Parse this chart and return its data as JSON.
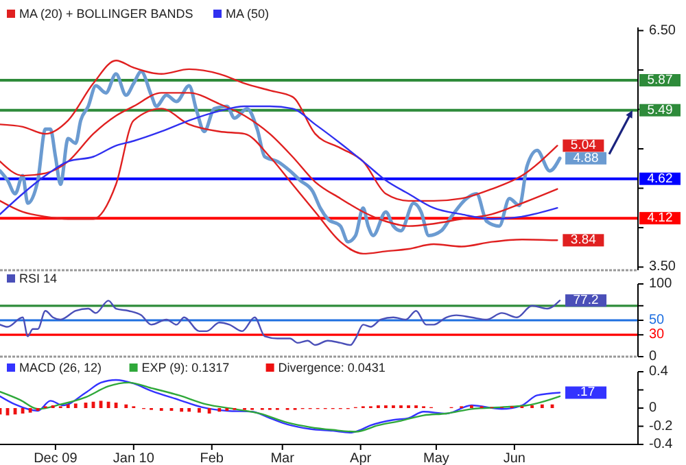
{
  "chart_data": [
    {
      "type": "line",
      "legend": "top left",
      "tick_labels": "y",
      "xlim": [
        "2009-11-09",
        "2010-07-20"
      ],
      "ylim": [
        3.46,
        6.54
      ],
      "yticks": [
        {
          "value": 3.5,
          "label": "3.50"
        },
        {
          "value": 4,
          "label": null
        },
        {
          "value": 4.5,
          "label": null
        },
        {
          "value": 5,
          "label": null
        },
        {
          "value": 5.5,
          "label": null
        },
        {
          "value": 6,
          "label": null
        },
        {
          "value": 6.5,
          "label": "6.50"
        }
      ],
      "ref_lines": [
        {
          "axis": "y",
          "value": 5.87,
          "label": "5.87",
          "color": "#2e8b3a"
        },
        {
          "axis": "y",
          "value": 5.49,
          "label": "5.49",
          "color": "#2e8b3a"
        },
        {
          "axis": "y",
          "value": 4.62,
          "label": "4.62",
          "color": "#0000ff"
        },
        {
          "axis": "y",
          "value": 4.12,
          "label": "4.12",
          "color": "#ff0000"
        }
      ],
      "series": [
        {
          "color": "#6b9bd1",
          "x": [
            "2009-11-09",
            "2009-11-12",
            "2009-11-15",
            "2009-11-18",
            "2009-11-20",
            "2009-11-24",
            "2009-11-27",
            "2009-11-29",
            "2009-12-01",
            "2009-12-03",
            "2009-12-06",
            "2009-12-09",
            "2009-12-11",
            "2009-12-14",
            "2009-12-17",
            "2009-12-21",
            "2009-12-25",
            "2009-12-29",
            "2010-01-01",
            "2010-01-04",
            "2010-01-08",
            "2010-01-10",
            "2010-01-14",
            "2010-01-18",
            "2010-01-23",
            "2010-01-26",
            "2010-01-29",
            "2010-02-02",
            "2010-02-07",
            "2010-02-10",
            "2010-02-15",
            "2010-02-19",
            "2010-02-22",
            "2010-02-27",
            "2010-03-04",
            "2010-03-08",
            "2010-03-13",
            "2010-03-16",
            "2010-03-19",
            "2010-03-24",
            "2010-03-27",
            "2010-03-30",
            "2010-04-02",
            "2010-04-04",
            "2010-04-06",
            "2010-04-11",
            "2010-04-14",
            "2010-04-17",
            "2010-04-22",
            "2010-04-25",
            "2010-04-28",
            "2010-05-03",
            "2010-05-07",
            "2010-05-13",
            "2010-05-17",
            "2010-05-21",
            "2010-05-26",
            "2010-05-30",
            "2010-06-03",
            "2010-06-06",
            "2010-06-10",
            "2010-06-15",
            "2010-06-19"
          ],
          "values": [
            4.72,
            4.6,
            4.43,
            4.66,
            4.31,
            4.6,
            5.25,
            5.25,
            4.9,
            4.55,
            5.13,
            5.07,
            5.36,
            5.54,
            5.8,
            5.71,
            5.95,
            5.68,
            5.83,
            5.98,
            5.68,
            5.54,
            5.68,
            5.6,
            5.8,
            5.48,
            5.22,
            5.51,
            5.54,
            5.39,
            5.51,
            5.25,
            4.9,
            4.84,
            4.72,
            4.6,
            4.46,
            4.25,
            4.11,
            4.02,
            3.82,
            3.9,
            4.25,
            4.02,
            3.9,
            4.2,
            4.02,
            3.96,
            4.31,
            4.2,
            3.9,
            3.96,
            4.14,
            4.37,
            4.43,
            4.08,
            4.02,
            4.37,
            4.28,
            4.78,
            4.98,
            4.72,
            4.88
          ],
          "value_labels": [
            null,
            null,
            null,
            null,
            null,
            null,
            null,
            null,
            null,
            null,
            null,
            null,
            null,
            null,
            null,
            null,
            null,
            null,
            null,
            null,
            null,
            null,
            null,
            null,
            null,
            null,
            null,
            null,
            null,
            null,
            null,
            null,
            null,
            null,
            null,
            null,
            null,
            null,
            null,
            null,
            null,
            null,
            null,
            null,
            null,
            null,
            null,
            null,
            null,
            null,
            null,
            null,
            null,
            null,
            null,
            null,
            null,
            null,
            null,
            null,
            null,
            null,
            "4.88"
          ]
        },
        {
          "name": "MA (20) + BOLLINGER BANDS",
          "color": "#e02020",
          "values": [
            4.84,
            4.66,
            4.69,
            4.84,
            5.19,
            5.42,
            5.54,
            5.71,
            5.71,
            5.57,
            5.42,
            5.19,
            4.9,
            4.58,
            4.37,
            4.2,
            4.08,
            4.02,
            4.05,
            4.11,
            4.17,
            4.31,
            4.49
          ]
        },
        {
          "color": "#e02020",
          "values": [
            5.31,
            5.28,
            5.19,
            5.36,
            5.83,
            6.12,
            6.03,
            5.95,
            6.01,
            5.95,
            5.83,
            5.74,
            5.66,
            5.19,
            5.01,
            4.84,
            4.43,
            4.34,
            4.34,
            4.37,
            4.49,
            4.66,
            5.04
          ],
          "value_labels": [
            null,
            null,
            null,
            null,
            null,
            null,
            null,
            null,
            null,
            null,
            null,
            null,
            null,
            null,
            null,
            null,
            null,
            null,
            null,
            null,
            null,
            null,
            "5.04"
          ]
        },
        {
          "color": "#e02020",
          "values": [
            4.34,
            4.2,
            4.14,
            4.11,
            4.11,
            4.55,
            5.36,
            5.51,
            5.31,
            5.22,
            5.19,
            4.9,
            4.55,
            4.2,
            3.82,
            3.67,
            3.7,
            3.73,
            3.79,
            3.76,
            3.82,
            3.85,
            3.84
          ],
          "value_labels": [
            null,
            null,
            null,
            null,
            null,
            null,
            null,
            null,
            null,
            null,
            null,
            null,
            null,
            null,
            null,
            null,
            null,
            null,
            null,
            null,
            null,
            null,
            "3.84"
          ]
        },
        {
          "name": "MA (50)",
          "color": "#3030f0",
          "values": [
            4.17,
            4.43,
            4.66,
            4.84,
            4.9,
            5.04,
            5.1,
            5.22,
            5.36,
            5.48,
            5.54,
            5.54,
            5.51,
            5.31,
            5.07,
            4.84,
            4.6,
            4.43,
            4.25,
            4.17,
            4.11,
            4.14,
            4.25
          ]
        }
      ],
      "x": [
        "2009-11-09",
        "2009-11-18",
        "2009-11-27",
        "2009-12-06",
        "2009-12-16",
        "2009-12-25",
        "2010-01-01",
        "2010-01-12",
        "2010-01-23",
        "2010-02-04",
        "2010-02-14",
        "2010-02-24",
        "2010-03-05",
        "2010-03-14",
        "2010-03-24",
        "2010-04-02",
        "2010-04-11",
        "2010-04-20",
        "2010-04-30",
        "2010-05-11",
        "2010-05-23",
        "2010-06-04",
        "2010-06-18"
      ]
    },
    {
      "type": "line",
      "legend": "top left",
      "tick_labels": "y",
      "xlim": [
        "2009-11-09",
        "2010-07-20"
      ],
      "ylim": [
        0,
        100
      ],
      "yticks": [
        0,
        30,
        50,
        {
          "value": 70,
          "label": null
        },
        100
      ],
      "ref_lines": [
        {
          "axis": "y",
          "value": 70,
          "color": "#2e8b3a"
        },
        {
          "axis": "y",
          "value": 50,
          "color": "#1e6fe0"
        },
        {
          "axis": "y",
          "value": 30,
          "color": "#ff0000"
        }
      ],
      "series": [
        {
          "name": "RSI 14",
          "color": "#4a4fb8",
          "x": [
            "2009-11-09",
            "2009-11-12",
            "2009-11-18",
            "2009-11-20",
            "2009-11-22",
            "2009-11-24",
            "2009-11-27",
            "2009-11-30",
            "2009-12-03",
            "2009-12-09",
            "2009-12-14",
            "2009-12-17",
            "2009-12-22",
            "2009-12-25",
            "2009-12-30",
            "2010-01-04",
            "2010-01-08",
            "2010-01-14",
            "2010-01-18",
            "2010-01-21",
            "2010-01-27",
            "2010-01-30",
            "2010-02-04",
            "2010-02-08",
            "2010-02-13",
            "2010-02-18",
            "2010-02-22",
            "2010-02-27",
            "2010-03-04",
            "2010-03-07",
            "2010-03-11",
            "2010-03-14",
            "2010-03-19",
            "2010-03-24",
            "2010-03-28",
            "2010-03-30",
            "2010-04-02",
            "2010-04-05",
            "2010-04-09",
            "2010-04-14",
            "2010-04-19",
            "2010-04-23",
            "2010-04-27",
            "2010-04-30",
            "2010-05-05",
            "2010-05-09",
            "2010-05-15",
            "2010-05-21",
            "2010-05-27",
            "2010-06-02",
            "2010-06-08",
            "2010-06-14",
            "2010-06-19"
          ],
          "values": [
            44,
            41,
            54,
            28,
            38,
            38,
            63,
            54,
            51,
            63,
            66,
            60,
            77,
            66,
            63,
            57,
            44,
            51,
            44,
            54,
            35,
            35,
            47,
            44,
            35,
            54,
            28,
            25,
            25,
            19,
            22,
            16,
            22,
            19,
            16,
            25,
            44,
            41,
            51,
            54,
            51,
            63,
            44,
            44,
            54,
            57,
            54,
            51,
            60,
            54,
            70,
            66,
            77.2
          ],
          "value_labels": [
            null,
            null,
            null,
            null,
            null,
            null,
            null,
            null,
            null,
            null,
            null,
            null,
            null,
            null,
            null,
            null,
            null,
            null,
            null,
            null,
            null,
            null,
            null,
            null,
            null,
            null,
            null,
            null,
            null,
            null,
            null,
            null,
            null,
            null,
            null,
            null,
            null,
            null,
            null,
            null,
            null,
            null,
            null,
            null,
            null,
            null,
            null,
            null,
            null,
            null,
            null,
            null,
            "77.2"
          ]
        }
      ]
    },
    {
      "type": "line",
      "legend": "top left",
      "xlim": [
        "2009-11-09",
        "2010-07-20"
      ],
      "ylim": [
        -0.4,
        0.4
      ],
      "xticks": [
        {
          "value": "2009-12-01",
          "label": "Dec 09"
        },
        {
          "value": "2010-01-01",
          "label": "Jan 10"
        },
        {
          "value": "2010-02-01",
          "label": "Feb"
        },
        {
          "value": "2010-03-01",
          "label": "Mar"
        },
        {
          "value": "2010-04-01",
          "label": "Apr"
        },
        {
          "value": "2010-05-01",
          "label": "May"
        },
        {
          "value": "2010-06-01",
          "label": "Jun"
        }
      ],
      "yticks": [
        -0.4,
        -0.2,
        0,
        {
          "value": 0.2,
          "label": null
        },
        0.4
      ],
      "series": [
        {
          "name": "MACD (26, 12)",
          "color": "#3333ff",
          "x": [
            "2009-11-09",
            "2009-11-15",
            "2009-11-24",
            "2009-11-29",
            "2009-12-04",
            "2009-12-13",
            "2009-12-19",
            "2009-12-25",
            "2010-01-01",
            "2010-01-08",
            "2010-01-19",
            "2010-01-28",
            "2010-02-07",
            "2010-02-17",
            "2010-02-24",
            "2010-03-03",
            "2010-03-12",
            "2010-03-21",
            "2010-03-28",
            "2010-03-31",
            "2010-04-05",
            "2010-04-14",
            "2010-04-20",
            "2010-04-26",
            "2010-05-05",
            "2010-05-15",
            "2010-05-27",
            "2010-06-04",
            "2010-06-10",
            "2010-06-19"
          ],
          "values": [
            0.13,
            0.04,
            -0.03,
            0.08,
            0.03,
            0.17,
            0.28,
            0.31,
            0.27,
            0.19,
            0.09,
            0.01,
            -0.03,
            -0.04,
            -0.11,
            -0.18,
            -0.23,
            -0.25,
            -0.27,
            -0.25,
            -0.19,
            -0.13,
            -0.11,
            -0.04,
            -0.06,
            0.03,
            -0.01,
            0.03,
            0.14,
            0.17
          ],
          "value_labels": [
            null,
            null,
            null,
            null,
            null,
            null,
            null,
            null,
            null,
            null,
            null,
            null,
            null,
            null,
            null,
            null,
            null,
            null,
            null,
            null,
            null,
            null,
            null,
            null,
            null,
            null,
            null,
            null,
            null,
            ".17"
          ]
        },
        {
          "name": "EXP (9): 0.1317",
          "color": "#2fa83a",
          "x": [
            "2009-11-09",
            "2009-11-17",
            "2009-11-24",
            "2009-12-03",
            "2009-12-13",
            "2009-12-22",
            "2009-12-30",
            "2010-01-08",
            "2010-01-19",
            "2010-01-30",
            "2010-02-10",
            "2010-02-20",
            "2010-03-03",
            "2010-03-12",
            "2010-03-21",
            "2010-03-30",
            "2010-04-08",
            "2010-04-17",
            "2010-04-26",
            "2010-05-05",
            "2010-05-15",
            "2010-05-27",
            "2010-06-06",
            "2010-06-19"
          ],
          "values": [
            0.18,
            0.09,
            -0.01,
            0.04,
            0.12,
            0.24,
            0.28,
            0.22,
            0.14,
            0.04,
            -0.01,
            -0.06,
            -0.16,
            -0.21,
            -0.24,
            -0.26,
            -0.19,
            -0.14,
            -0.08,
            -0.06,
            -0.01,
            0.01,
            0.03,
            0.13
          ]
        },
        {
          "name": "Divergence: 0.0431",
          "type": "bar",
          "color": "#ee1111",
          "x": [
            "2009-11-09",
            "2009-11-12",
            "2009-11-15",
            "2009-11-18",
            "2009-11-21",
            "2009-11-24",
            "2009-11-27",
            "2009-11-30",
            "2009-12-03",
            "2009-12-06",
            "2009-12-09",
            "2009-12-13",
            "2009-12-16",
            "2009-12-19",
            "2009-12-22",
            "2009-12-25",
            "2009-12-29",
            "2010-01-01",
            "2010-01-05",
            "2010-01-08",
            "2010-01-12",
            "2010-01-16",
            "2010-01-20",
            "2010-01-23",
            "2010-01-27",
            "2010-01-31",
            "2010-02-04",
            "2010-02-07",
            "2010-02-10",
            "2010-02-14",
            "2010-02-17",
            "2010-02-21",
            "2010-02-24",
            "2010-02-27",
            "2010-03-03",
            "2010-03-06",
            "2010-03-09",
            "2010-03-12",
            "2010-03-15",
            "2010-03-18",
            "2010-03-21",
            "2010-03-24",
            "2010-03-27",
            "2010-03-30",
            "2010-04-02",
            "2010-04-05",
            "2010-04-08",
            "2010-04-11",
            "2010-04-14",
            "2010-04-17",
            "2010-04-20",
            "2010-04-23",
            "2010-04-26",
            "2010-04-29",
            "2010-05-07",
            "2010-05-11",
            "2010-05-15",
            "2010-05-19",
            "2010-05-23",
            "2010-05-27",
            "2010-05-31",
            "2010-06-04",
            "2010-06-08",
            "2010-06-12",
            "2010-06-16"
          ],
          "values": [
            -0.07,
            -0.08,
            -0.07,
            -0.06,
            -0.05,
            -0.03,
            0.02,
            0.03,
            0.02,
            0.04,
            0.05,
            0.06,
            0.07,
            0.08,
            0.07,
            0.06,
            0.04,
            0.02,
            -0.01,
            -0.02,
            -0.03,
            -0.03,
            -0.04,
            -0.04,
            -0.05,
            -0.06,
            -0.04,
            -0.03,
            -0.02,
            -0.02,
            -0.02,
            -0.02,
            -0.02,
            -0.02,
            -0.02,
            -0.02,
            -0.01,
            -0.01,
            -0.01,
            -0.01,
            -0.01,
            -0.01,
            -0.01,
            0.01,
            0.02,
            0.02,
            0.03,
            0.03,
            0.03,
            0.03,
            0.03,
            0.03,
            0.02,
            0.01,
            0.01,
            0.02,
            0.03,
            0.02,
            0.01,
            0.01,
            0.02,
            0.02,
            0.03,
            0.04,
            0.04
          ]
        }
      ]
    }
  ]
}
